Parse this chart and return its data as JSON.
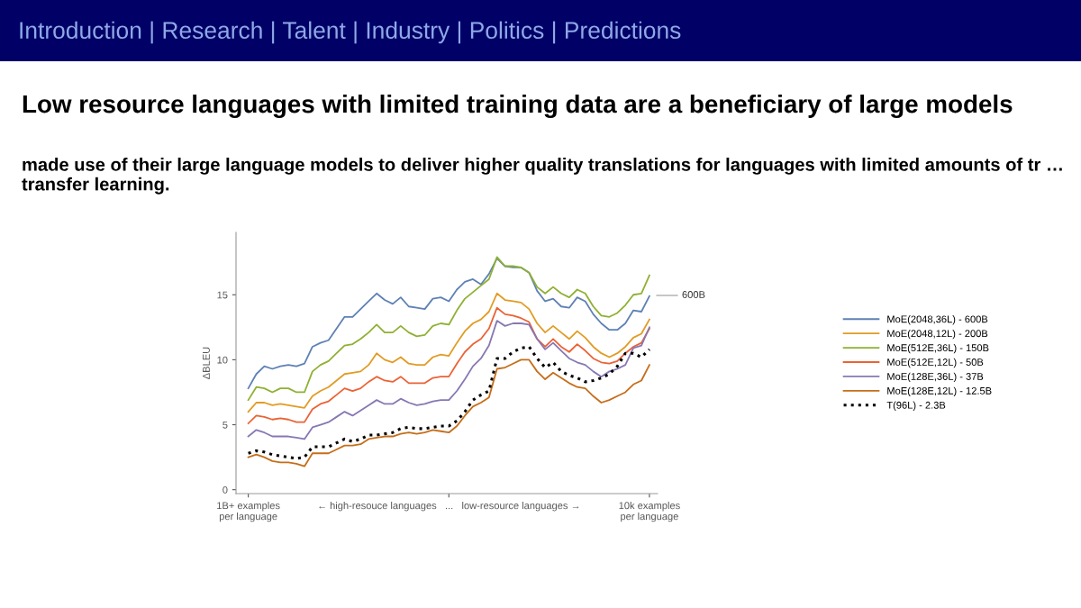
{
  "chart_data": {
    "type": "line",
    "title": "Low resource languages with limited training data are a beneficiary of large models",
    "subtitle": "made use of their large language models to deliver higher quality translations for languages with limited amounts of tr … transfer learning.",
    "ylabel": "ΔBLEU",
    "annotations": [
      "Introduction | Research | Talent | Industry | Politics | Predictions",
      "600B"
    ],
    "categories": [
      "1B+ examples\nper language",
      null,
      null,
      null,
      null,
      null,
      null,
      null,
      null,
      null,
      null,
      null,
      null,
      null,
      null,
      null,
      null,
      null,
      null,
      null,
      null,
      null,
      null,
      null,
      null,
      "← high-resouce languages   ...   low-resource languages →",
      null,
      null,
      null,
      null,
      null,
      null,
      null,
      null,
      null,
      null,
      null,
      null,
      null,
      null,
      null,
      null,
      null,
      null,
      null,
      null,
      null,
      null,
      null,
      null,
      "10k examples\nper language"
    ],
    "ylim": [
      -0.3,
      19.8
    ],
    "yticks": [
      0,
      5,
      10,
      15
    ],
    "grid": false,
    "legend": "right",
    "marker": "none",
    "series": [
      {
        "name": "MoE(2048,36L) - 600B",
        "color": "#5e81b5",
        "values": [
          7.8,
          8.9,
          9.5,
          9.3,
          9.5,
          9.6,
          9.5,
          9.7,
          11.0,
          11.3,
          11.5,
          12.4,
          13.3,
          13.3,
          13.9,
          14.5,
          15.1,
          14.6,
          14.3,
          14.8,
          14.1,
          14.0,
          13.9,
          14.7,
          14.8,
          14.5,
          15.4,
          16.0,
          16.2,
          15.8,
          16.6,
          17.8,
          17.2,
          17.1,
          17.1,
          16.7,
          15.3,
          14.5,
          14.7,
          14.1,
          14.0,
          14.8,
          14.5,
          13.5,
          12.8,
          12.3,
          12.3,
          12.8,
          13.8,
          13.7,
          14.9
        ]
      },
      {
        "name": "MoE(2048,12L) - 200B",
        "color": "#e19c24",
        "values": [
          6.0,
          6.7,
          6.7,
          6.5,
          6.6,
          6.5,
          6.4,
          6.3,
          7.2,
          7.6,
          7.9,
          8.4,
          8.9,
          9.0,
          9.1,
          9.6,
          10.5,
          10.0,
          9.8,
          10.2,
          9.7,
          9.6,
          9.6,
          10.2,
          10.4,
          10.3,
          11.3,
          12.2,
          12.8,
          13.1,
          13.7,
          15.1,
          14.6,
          14.5,
          14.4,
          13.9,
          12.8,
          12.1,
          12.6,
          12.1,
          11.6,
          12.2,
          11.7,
          11.0,
          10.5,
          10.2,
          10.5,
          11.0,
          11.7,
          12.0,
          13.1
        ]
      },
      {
        "name": "MoE(512E,36L) - 150B",
        "color": "#8fb032",
        "values": [
          6.9,
          7.9,
          7.8,
          7.5,
          7.8,
          7.8,
          7.5,
          7.5,
          9.1,
          9.6,
          9.9,
          10.5,
          11.1,
          11.2,
          11.6,
          12.1,
          12.7,
          12.1,
          12.1,
          12.6,
          12.1,
          11.8,
          11.9,
          12.6,
          12.8,
          12.7,
          13.8,
          14.7,
          15.2,
          15.7,
          16.2,
          17.9,
          17.2,
          17.2,
          17.1,
          16.7,
          15.6,
          15.1,
          15.6,
          15.1,
          14.8,
          15.4,
          15.1,
          14.1,
          13.4,
          13.3,
          13.6,
          14.2,
          15.0,
          15.1,
          16.5
        ]
      },
      {
        "name": "MoE(512E,12L) - 50B",
        "color": "#eb6235",
        "values": [
          5.1,
          5.7,
          5.6,
          5.4,
          5.5,
          5.4,
          5.2,
          5.2,
          6.2,
          6.6,
          6.8,
          7.3,
          7.8,
          7.6,
          7.8,
          8.3,
          8.7,
          8.4,
          8.3,
          8.7,
          8.2,
          8.2,
          8.2,
          8.6,
          8.7,
          8.7,
          9.7,
          10.6,
          11.2,
          11.6,
          12.4,
          14.0,
          13.5,
          13.4,
          13.2,
          12.9,
          11.6,
          11.0,
          11.6,
          11.0,
          10.6,
          11.2,
          10.7,
          10.1,
          9.8,
          9.7,
          9.9,
          10.5,
          11.0,
          11.3,
          12.4
        ]
      },
      {
        "name": "MoE(128E,36L) - 37B",
        "color": "#8778b3",
        "values": [
          4.1,
          4.6,
          4.4,
          4.1,
          4.1,
          4.1,
          4.0,
          3.9,
          4.8,
          5.0,
          5.2,
          5.6,
          6.0,
          5.7,
          6.1,
          6.5,
          6.9,
          6.6,
          6.6,
          7.0,
          6.7,
          6.5,
          6.6,
          6.8,
          6.9,
          6.9,
          7.6,
          8.5,
          9.5,
          10.1,
          11.1,
          13.0,
          12.6,
          12.8,
          12.8,
          12.7,
          11.6,
          10.8,
          11.3,
          10.7,
          10.1,
          9.8,
          9.6,
          9.1,
          8.7,
          9.1,
          9.3,
          9.6,
          10.9,
          11.1,
          12.5
        ]
      },
      {
        "name": "MoE(128E,12L) - 12.5B",
        "color": "#c56e1a",
        "values": [
          2.5,
          2.7,
          2.5,
          2.2,
          2.1,
          2.1,
          2.0,
          1.8,
          2.8,
          2.8,
          2.8,
          3.1,
          3.4,
          3.4,
          3.5,
          3.9,
          4.0,
          4.1,
          4.1,
          4.3,
          4.4,
          4.3,
          4.4,
          4.6,
          4.5,
          4.4,
          4.9,
          5.7,
          6.4,
          6.7,
          7.1,
          9.3,
          9.4,
          9.7,
          10.0,
          10.0,
          9.1,
          8.5,
          9.0,
          8.6,
          8.2,
          7.9,
          7.8,
          7.2,
          6.7,
          6.9,
          7.2,
          7.5,
          8.1,
          8.4,
          9.6
        ]
      },
      {
        "name": "T(96L) - 2.3B",
        "color": "#000000",
        "line_style": "dotted",
        "values": [
          2.8,
          3.0,
          2.9,
          2.7,
          2.6,
          2.5,
          2.4,
          2.5,
          3.3,
          3.3,
          3.3,
          3.6,
          3.9,
          3.7,
          3.9,
          4.2,
          4.2,
          4.3,
          4.4,
          4.7,
          4.8,
          4.7,
          4.7,
          4.8,
          4.9,
          4.9,
          5.3,
          6.0,
          6.9,
          7.3,
          7.6,
          10.1,
          10.1,
          10.6,
          10.9,
          11.0,
          10.1,
          9.4,
          9.8,
          9.1,
          8.8,
          8.6,
          8.3,
          8.4,
          8.6,
          8.9,
          9.5,
          10.5,
          10.5,
          10.2,
          10.8
        ]
      }
    ]
  }
}
